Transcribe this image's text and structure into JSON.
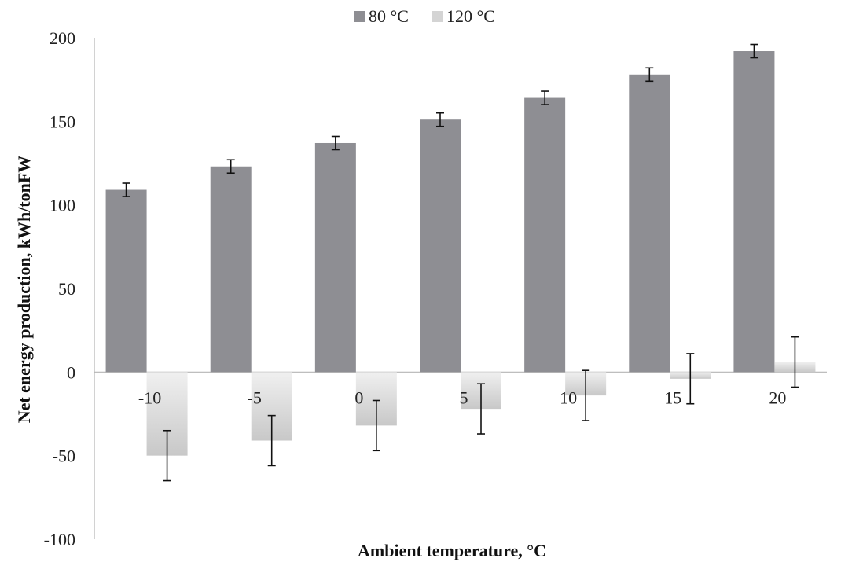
{
  "chart_data": {
    "type": "bar",
    "title": "",
    "xlabel": "Ambient temperature, °C",
    "ylabel": "Net energy production, kWh/tonFW",
    "categories": [
      "-10",
      "-5",
      "0",
      "5",
      "10",
      "15",
      "20"
    ],
    "ylim": [
      -100,
      200
    ],
    "yticks": [
      -100,
      -50,
      0,
      50,
      100,
      150,
      200
    ],
    "grid": false,
    "legend_position": "top-center",
    "series": [
      {
        "name": "80 °C",
        "color": "#8e8e93",
        "values": [
          109,
          123,
          137,
          151,
          164,
          178,
          192
        ],
        "error": [
          4,
          4,
          4,
          4,
          4,
          4,
          4
        ]
      },
      {
        "name": "120 °C",
        "color": "#d4d4d4",
        "values": [
          -50,
          -41,
          -32,
          -22,
          -14,
          -4,
          6
        ],
        "error": [
          15,
          15,
          15,
          15,
          15,
          15,
          15
        ]
      }
    ]
  }
}
